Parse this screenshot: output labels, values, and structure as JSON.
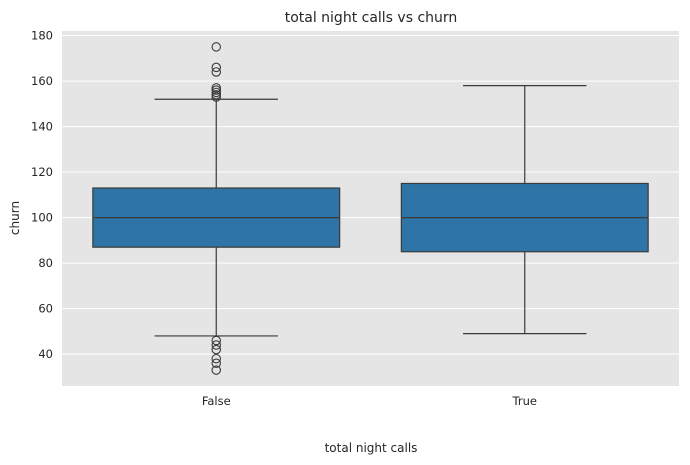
{
  "chart_data": {
    "type": "box",
    "title": "total night calls vs churn",
    "xlabel": "total night calls",
    "ylabel": "churn",
    "ylim": [
      26,
      182
    ],
    "yticks": [
      40,
      60,
      80,
      100,
      120,
      140,
      160,
      180
    ],
    "grid": true,
    "colors": {
      "background": "#e5e5e5",
      "box": "#2e74a6",
      "line": "#3a3a3a",
      "grid": "#ffffff"
    },
    "categories": [
      "False",
      "True"
    ],
    "boxes": [
      {
        "category": "False",
        "whisker_low": 48,
        "q1": 87,
        "median": 100,
        "q3": 113,
        "whisker_high": 152,
        "outliers": [
          175,
          166,
          164,
          157,
          156,
          155,
          154,
          153,
          46,
          44,
          42,
          38,
          36,
          33
        ]
      },
      {
        "category": "True",
        "whisker_low": 49,
        "q1": 85,
        "median": 100,
        "q3": 115,
        "whisker_high": 158,
        "outliers": []
      }
    ]
  }
}
